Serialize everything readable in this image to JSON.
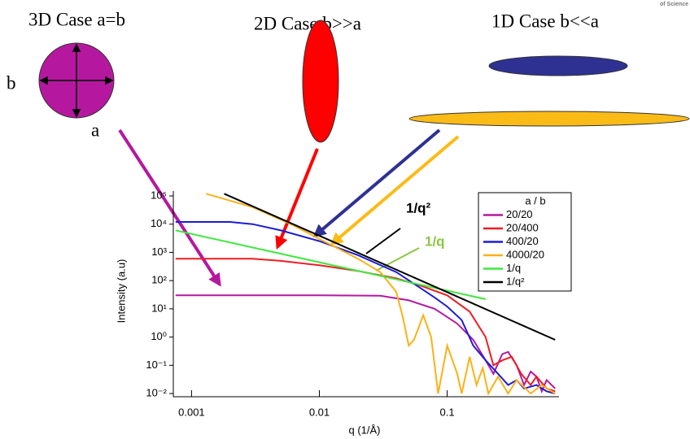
{
  "schematic": {
    "case_3d": "3D Case a=b",
    "case_2d": "2D Case b>>a",
    "case_1d": "1D Case b<<a",
    "label_b": "b",
    "label_a": "a",
    "logo_text": "of Science"
  },
  "chart_data": {
    "type": "line",
    "xlabel": "q (1/Å)",
    "ylabel": "Intensity (a.u)",
    "xlog": true,
    "ylog": true,
    "xlim": [
      0.00072,
      0.75
    ],
    "ylim": [
      0.0077,
      149000
    ],
    "xticks": [
      0.001,
      0.01,
      0.1
    ],
    "yticks": [
      {
        "value": 100000,
        "label": "10⁵"
      },
      {
        "value": 10000,
        "label": "10⁴"
      },
      {
        "value": 1000,
        "label": "10³"
      },
      {
        "value": 100,
        "label": "10²"
      },
      {
        "value": 10,
        "label": "10¹"
      },
      {
        "value": 1,
        "label": "10⁰"
      },
      {
        "value": 0.1,
        "label": "10⁻¹"
      },
      {
        "value": 0.01,
        "label": "10⁻²"
      }
    ],
    "legend_title": "a / b",
    "legend": "upper right",
    "annotations": [
      {
        "text": "1/q²",
        "color": "#000000"
      },
      {
        "text": "1/q",
        "color": "#8dc63f"
      }
    ],
    "series": [
      {
        "name": "20/20",
        "color": "#b5189f",
        "x": [
          0.00075,
          0.01,
          0.03,
          0.05,
          0.08,
          0.12,
          0.16,
          0.2,
          0.23,
          0.27,
          0.3,
          0.35,
          0.4,
          0.45,
          0.5,
          0.55,
          0.6,
          0.7
        ],
        "values": [
          30,
          30,
          29,
          20,
          10,
          3,
          0.8,
          0.15,
          0.05,
          0.25,
          0.3,
          0.1,
          0.02,
          0.06,
          0.04,
          0.012,
          0.03,
          0.015
        ]
      },
      {
        "name": "20/400",
        "color": "#ed1c24",
        "x": [
          0.00075,
          0.003,
          0.005,
          0.01,
          0.02,
          0.04,
          0.06,
          0.1,
          0.15,
          0.2,
          0.23,
          0.27,
          0.32,
          0.38,
          0.45,
          0.5,
          0.6,
          0.7
        ],
        "values": [
          600,
          600,
          500,
          350,
          220,
          120,
          70,
          30,
          8,
          1,
          0.1,
          0.15,
          0.2,
          0.05,
          0.02,
          0.04,
          0.015,
          0.012
        ]
      },
      {
        "name": "400/20",
        "color": "#1c1cd6",
        "x": [
          0.00075,
          0.002,
          0.003,
          0.005,
          0.01,
          0.02,
          0.04,
          0.06,
          0.08,
          0.1,
          0.13,
          0.16,
          0.2,
          0.25,
          0.3,
          0.35,
          0.4,
          0.5,
          0.6,
          0.7
        ],
        "values": [
          12000,
          12000,
          10000,
          6000,
          2500,
          800,
          200,
          60,
          25,
          12,
          4,
          0.5,
          0.15,
          0.05,
          0.02,
          0.03,
          0.015,
          0.02,
          0.012,
          0.01
        ]
      },
      {
        "name": "4000/20",
        "color": "#fbb117",
        "x": [
          0.0013,
          0.003,
          0.006,
          0.01,
          0.02,
          0.03,
          0.04,
          0.045,
          0.05,
          0.055,
          0.065,
          0.075,
          0.085,
          0.1,
          0.12,
          0.13,
          0.15,
          0.17,
          0.19,
          0.21,
          0.25,
          0.3,
          0.35,
          0.45,
          0.55,
          0.7
        ],
        "values": [
          120000,
          40000,
          10000,
          3000,
          600,
          200,
          40,
          5,
          0.5,
          0.8,
          6,
          1,
          0.01,
          0.5,
          0.05,
          0.01,
          0.2,
          0.02,
          0.08,
          0.01,
          0.04,
          0.01,
          0.03,
          0.01,
          0.02,
          0.01
        ]
      },
      {
        "name": "1/q",
        "color": "#3fe83f",
        "x": [
          0.00075,
          0.2
        ],
        "values": [
          6000,
          22
        ]
      },
      {
        "name": "1/q²",
        "color": "#000000",
        "x": [
          0.0018,
          0.7
        ],
        "values": [
          120000,
          0.8
        ]
      }
    ]
  }
}
